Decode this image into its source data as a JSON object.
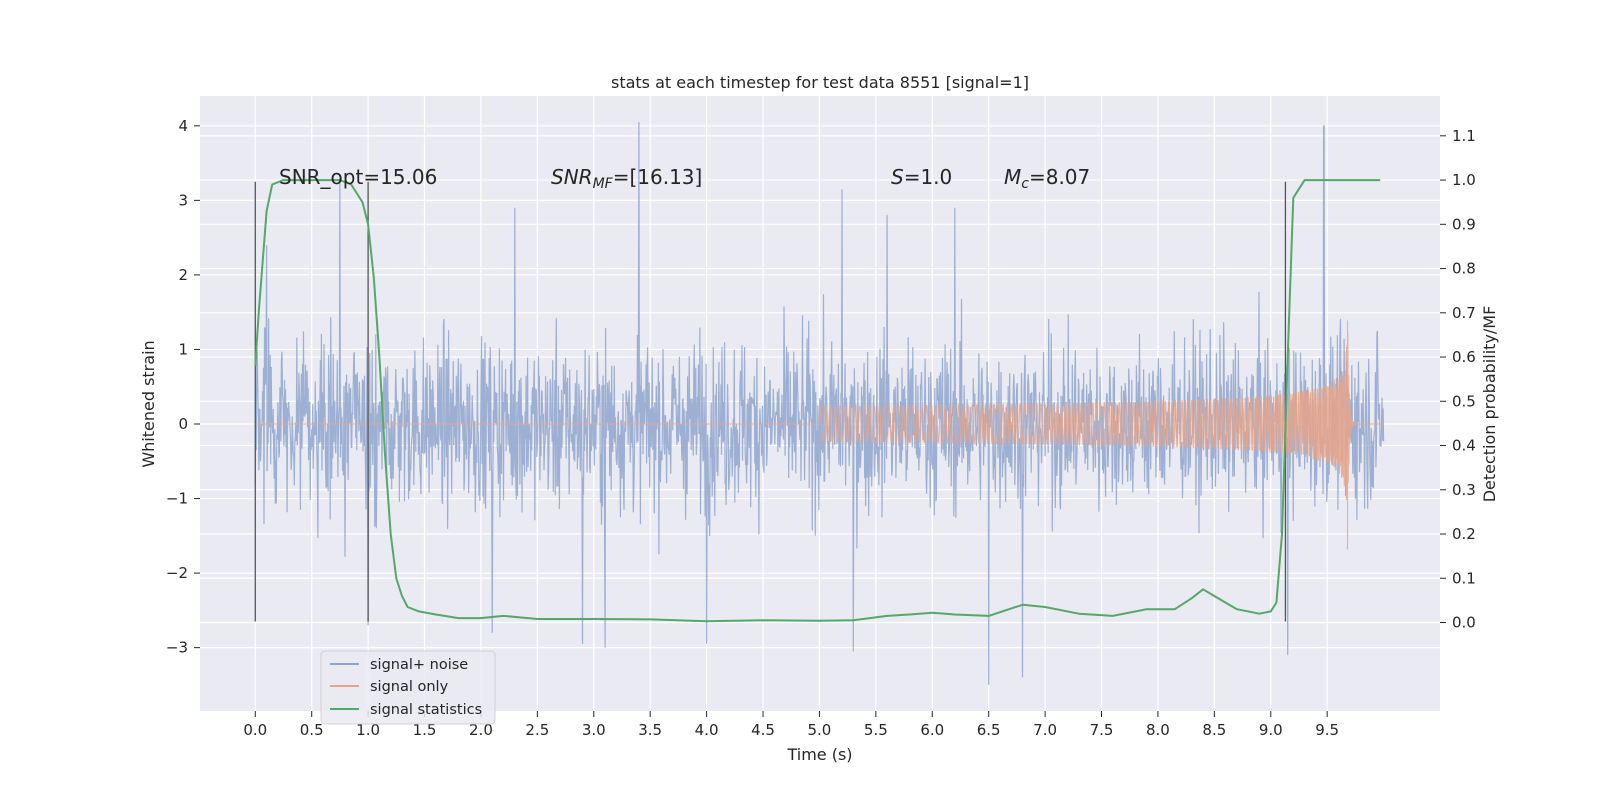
{
  "chart_data": {
    "type": "line",
    "title": "stats at each timestep for test data 8551 [signal=1]",
    "xlabel": "Time (s)",
    "ylabel_left": "Whitened strain",
    "ylabel_right": "Detection probability/MF",
    "xlim": [
      -0.49,
      10.5
    ],
    "ylim_left": [
      -3.85,
      4.4
    ],
    "ylim_right": [
      -0.2,
      1.19
    ],
    "xticks": [
      "0.0",
      "0.5",
      "1.0",
      "1.5",
      "2.0",
      "2.5",
      "3.0",
      "3.5",
      "4.0",
      "4.5",
      "5.0",
      "5.5",
      "6.0",
      "6.5",
      "7.0",
      "7.5",
      "8.0",
      "8.5",
      "9.0",
      "9.5"
    ],
    "yticks_left": [
      "4",
      "3",
      "2",
      "1",
      "0",
      "−1",
      "−2",
      "−3"
    ],
    "yticks_right": [
      "1.1",
      "1.0",
      "0.9",
      "0.8",
      "0.7",
      "0.6",
      "0.5",
      "0.4",
      "0.3",
      "0.2",
      "0.1",
      "0.0"
    ],
    "grid": true,
    "legend": {
      "placement": "lower-left",
      "entries": [
        "signal+ noise",
        "signal only",
        "signal statistics"
      ]
    },
    "annotations": {
      "snr_opt": "SNR_opt=15.06",
      "snr_mf_sym": "SNR",
      "snr_mf_sub": "MF",
      "snr_mf_val": "=[16.13]",
      "s_sym": "S",
      "s_val": "=1.0",
      "mc_sym": "M",
      "mc_sub": "c",
      "mc_val": "=8.07"
    },
    "vertical_markers": [
      0.0,
      1.0,
      9.13
    ],
    "vertical_marker_range": [
      -2.65,
      3.25
    ],
    "series": [
      {
        "name": "signal+ noise",
        "axis": "left",
        "color": "#8fa4cc",
        "x_range": [
          0.0,
          10.0
        ],
        "description_points": {
          "envelope_upper": 1.5,
          "envelope_lower": -1.5,
          "spikes": [
            [
              0.1,
              2.4
            ],
            [
              0.75,
              3.3
            ],
            [
              1.0,
              3.3
            ],
            [
              2.3,
              2.9
            ],
            [
              3.4,
              4.05
            ],
            [
              5.2,
              3.15
            ],
            [
              5.6,
              2.8
            ],
            [
              6.2,
              2.9
            ],
            [
              9.47,
              4.0
            ],
            [
              1.0,
              -2.7
            ],
            [
              2.1,
              -2.8
            ],
            [
              2.9,
              -2.95
            ],
            [
              3.1,
              -3.0
            ],
            [
              4.0,
              -2.95
            ],
            [
              5.3,
              -3.05
            ],
            [
              6.5,
              -3.5
            ],
            [
              6.8,
              -3.4
            ],
            [
              9.15,
              -3.1
            ]
          ]
        }
      },
      {
        "name": "signal only",
        "axis": "left",
        "color": "#e8a48a",
        "chirp": {
          "start": 5.0,
          "merger": 9.68,
          "peak_amplitude": 1.4
        }
      },
      {
        "name": "signal statistics",
        "axis": "right",
        "color": "#55a868",
        "x": [
          0.0,
          0.03,
          0.1,
          0.15,
          0.25,
          0.5,
          0.75,
          0.85,
          0.95,
          1.0,
          1.05,
          1.1,
          1.15,
          1.2,
          1.25,
          1.3,
          1.35,
          1.45,
          1.6,
          1.8,
          2.0,
          2.2,
          2.5,
          3.0,
          3.5,
          4.0,
          4.5,
          5.0,
          5.3,
          5.6,
          5.8,
          6.0,
          6.2,
          6.5,
          6.8,
          7.0,
          7.3,
          7.6,
          7.9,
          8.15,
          8.3,
          8.4,
          8.5,
          8.7,
          8.9,
          9.0,
          9.05,
          9.1,
          9.15,
          9.2,
          9.3,
          9.5,
          9.8,
          9.97
        ],
        "values": [
          0.58,
          0.7,
          0.93,
          0.99,
          1.0,
          1.0,
          1.0,
          0.99,
          0.95,
          0.9,
          0.78,
          0.6,
          0.38,
          0.2,
          0.1,
          0.06,
          0.035,
          0.025,
          0.018,
          0.01,
          0.01,
          0.015,
          0.008,
          0.008,
          0.007,
          0.003,
          0.005,
          0.004,
          0.005,
          0.015,
          0.018,
          0.022,
          0.018,
          0.015,
          0.04,
          0.035,
          0.02,
          0.015,
          0.03,
          0.03,
          0.055,
          0.075,
          0.06,
          0.03,
          0.02,
          0.025,
          0.045,
          0.2,
          0.6,
          0.96,
          1.0,
          1.0,
          1.0,
          1.0
        ]
      }
    ]
  }
}
